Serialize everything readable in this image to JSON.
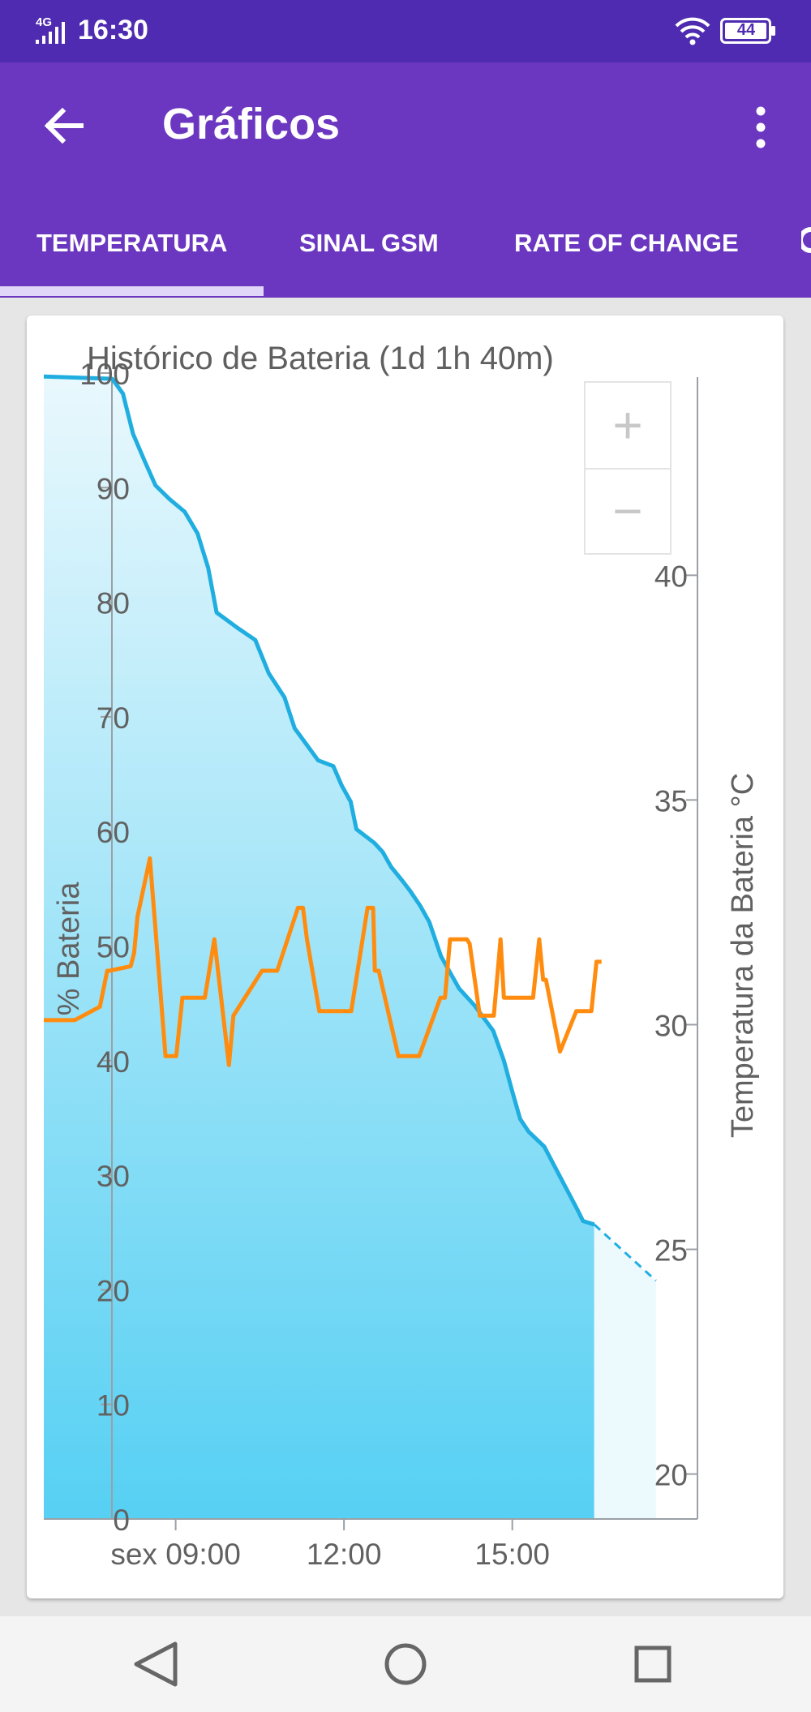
{
  "status_bar": {
    "network": "4G",
    "time": "16:30",
    "battery_level": "44"
  },
  "app_bar": {
    "title": "Gráficos"
  },
  "tabs": [
    {
      "label": "TEMPERATURA",
      "selected": true
    },
    {
      "label": "SINAL GSM",
      "selected": false
    },
    {
      "label": "RATE OF CHANGE",
      "selected": false
    }
  ],
  "zoom": {
    "in_label": "+",
    "out_label": "−"
  },
  "colors": {
    "status_bar": "#4e2bb0",
    "app_bar": "#6b37c0",
    "battery_line": "#20aee0",
    "battery_fill_top": "#e9f8fd",
    "battery_fill_bottom": "#56d0f3",
    "temperature_line": "#ff8c0f"
  },
  "chart_data": {
    "type": "line",
    "title": "Histórico de Bateria (1d 1h 40m)",
    "ylabel": "% Bateria",
    "ylabel_right": "Temperatura da Bateria °C",
    "ylim": [
      0,
      100
    ],
    "ylim_right": [
      19,
      44.5
    ],
    "xlim": [
      6.65,
      18.3
    ],
    "x_ticks": [
      {
        "x": 9,
        "label": "sex 09:00"
      },
      {
        "x": 12,
        "label": "12:00"
      },
      {
        "x": 15,
        "label": "15:00"
      }
    ],
    "y_ticks": [
      "0",
      "10",
      "20",
      "30",
      "40",
      "50",
      "60",
      "70",
      "80",
      "90",
      "100"
    ],
    "y_ticks_right": [
      "20",
      "25",
      "30",
      "35",
      "40"
    ],
    "series": [
      {
        "name": "% Bateria",
        "axis": "left",
        "x": [
          6.65,
          7.87,
          8.06,
          8.24,
          8.45,
          8.64,
          8.89,
          9.16,
          9.39,
          9.58,
          9.73,
          10.12,
          10.42,
          10.66,
          10.94,
          11.12,
          11.54,
          11.81,
          11.96,
          12.12,
          12.22,
          12.54,
          12.69,
          12.84,
          13.04,
          13.18,
          13.36,
          13.52,
          13.73,
          14.05,
          14.33,
          14.66,
          14.85,
          15.0,
          15.14,
          15.29,
          15.57,
          15.73,
          15.88,
          16.03,
          16.16,
          16.26,
          16.46
        ],
        "y": [
          99.7,
          99.5,
          98.2,
          94.7,
          92.3,
          90.2,
          89.0,
          87.9,
          86.0,
          83.0,
          79.1,
          77.7,
          76.7,
          73.8,
          71.7,
          69.0,
          66.2,
          65.7,
          64.0,
          62.6,
          60.2,
          59.0,
          58.2,
          56.9,
          55.7,
          54.8,
          53.5,
          52.1,
          49.1,
          46.3,
          44.8,
          42.6,
          40.0,
          37.3,
          34.9,
          33.8,
          32.5,
          31.0,
          29.6,
          28.2,
          27.0,
          26.0,
          25.7
        ]
      },
      {
        "name": "% Bateria (projeção)",
        "axis": "left",
        "style": "dashed",
        "x": [
          16.46,
          17.56
        ],
        "y": [
          25.7,
          20.8
        ]
      },
      {
        "name": "Temperatura da Bateria °C",
        "axis": "right",
        "x": [
          6.65,
          7.2,
          7.65,
          7.78,
          7.82,
          8.2,
          8.26,
          8.32,
          8.54,
          8.82,
          9.01,
          9.12,
          9.52,
          9.69,
          9.95,
          10.03,
          10.54,
          10.81,
          11.18,
          11.27,
          11.34,
          11.56,
          11.95,
          12.06,
          12.13,
          12.42,
          12.52,
          12.55,
          12.62,
          12.97,
          13.34,
          13.72,
          13.8,
          13.89,
          14.06,
          14.19,
          14.24,
          14.42,
          14.67,
          14.79,
          14.85,
          15.19,
          15.37,
          15.48,
          15.55,
          15.6,
          15.85,
          16.14,
          16.3,
          16.41,
          16.5,
          16.52,
          16.59
        ],
        "y": [
          30.1,
          30.1,
          30.4,
          31.2,
          31.2,
          31.3,
          31.6,
          32.4,
          33.7,
          29.3,
          29.3,
          30.6,
          30.6,
          31.9,
          29.1,
          30.2,
          31.2,
          31.2,
          32.6,
          32.6,
          31.9,
          30.3,
          30.3,
          30.3,
          30.3,
          32.6,
          32.6,
          31.2,
          31.2,
          29.3,
          29.3,
          30.6,
          30.6,
          31.9,
          31.9,
          31.9,
          31.8,
          30.2,
          30.2,
          31.9,
          30.6,
          30.6,
          30.6,
          31.9,
          31.0,
          31.0,
          29.4,
          30.3,
          30.3,
          30.3,
          31.4,
          31.4,
          31.4
        ]
      }
    ]
  }
}
